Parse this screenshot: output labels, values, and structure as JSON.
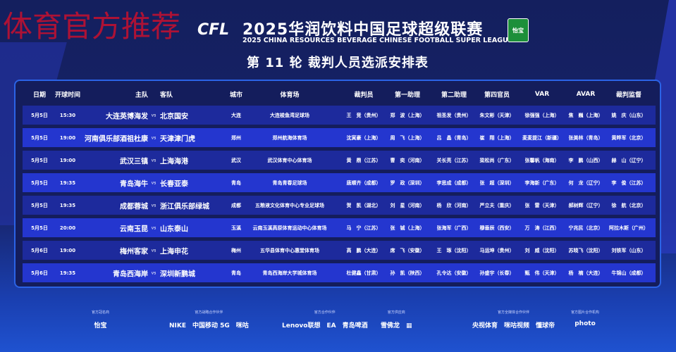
{
  "watermark": "体育官方推荐",
  "header": {
    "logo": "CFL",
    "title_cn": "2025华润饮料中国足球超级联赛",
    "title_en": "2025 CHINA RESOURCES BEVERAGE CHINESE FOOTBALL SUPER LEAGUE",
    "sponsor_badge": "怡宝",
    "round_title": "第 11 轮 裁判人员选派安排表"
  },
  "columns": {
    "date": "日期",
    "time": "开球时间",
    "home": "主队",
    "away": "客队",
    "city": "城市",
    "venue": "体育场",
    "referee": "裁判员",
    "a1": "第一助理",
    "a2": "第二助理",
    "fourth": "第四官员",
    "var": "VAR",
    "avar": "AVAR",
    "supervisor": "裁判监督"
  },
  "vs": "vs",
  "matches": [
    {
      "date": "5月5日",
      "time": "15:30",
      "home": "大连英博海发",
      "away": "北京国安",
      "city": "大连",
      "venue": "大连梭鱼湾足球场",
      "referee": "王　竞（贵州）",
      "a1": "郑　波（上海）",
      "a2": "祖圣发（贵州）",
      "fourth": "朱文彬（天津）",
      "var": "徐强强（上海）",
      "avar": "焦　巍（上海）",
      "supervisor": "姚　庆（山东）"
    },
    {
      "date": "5月5日",
      "time": "19:00",
      "home": "河南俱乐部酒祖杜康",
      "away": "天津津门虎",
      "city": "郑州",
      "venue": "郑州航海体育场",
      "referee": "沈寅豪（上海）",
      "a1": "周　飞（上海）",
      "a2": "吕　晶（青岛）",
      "fourth": "崔　翔（上海）",
      "var": "麦麦提江（新疆）",
      "avar": "张美林（青岛）",
      "supervisor": "黄晔军（北京）"
    },
    {
      "date": "5月5日",
      "time": "19:00",
      "home": "武汉三镇",
      "away": "上海海港",
      "city": "武汉",
      "venue": "武汉体育中心体育场",
      "referee": "黄　鼎（江苏）",
      "a1": "曹　奕（河南）",
      "a2": "关长亮（江苏）",
      "fourth": "梁松尚（广东）",
      "var": "张馨帆（海南）",
      "avar": "李　鹏（山西）",
      "supervisor": "赫　山（辽宁）"
    },
    {
      "date": "5月5日",
      "time": "19:35",
      "home": "青岛海牛",
      "away": "长春亚泰",
      "city": "青岛",
      "venue": "青岛青春足球场",
      "referee": "唐顺齐（成都）",
      "a1": "罗　政（深圳）",
      "a2": "李思成（成都）",
      "fourth": "张　超（深圳）",
      "var": "李海新（广东）",
      "avar": "何　龙（辽宁）",
      "supervisor": "李　俊（江苏）"
    },
    {
      "date": "5月5日",
      "time": "19:35",
      "home": "成都蓉城",
      "away": "浙江俱乐部绿城",
      "city": "成都",
      "venue": "五粮液文化体育中心专业足球场",
      "referee": "贺　凯（湖北）",
      "a1": "刘　星（河南）",
      "a2": "杨　欣（河南）",
      "fourth": "严立夫（重庆）",
      "var": "张　雷（天津）",
      "avar": "郝树辉（辽宁）",
      "supervisor": "徐　航（北京）"
    },
    {
      "date": "5月5日",
      "time": "20:00",
      "home": "云南玉昆",
      "away": "山东泰山",
      "city": "玉溪",
      "venue": "云南玉溪高原体育运动中心体育场",
      "referee": "马　宁（江苏）",
      "a1": "张　铖（上海）",
      "a2": "张海军（广西）",
      "fourth": "穆垂辰（西安）",
      "var": "万　涛（江西）",
      "avar": "宁兆民（北京）",
      "supervisor": "阿拉木斯（广州）"
    },
    {
      "date": "5月6日",
      "time": "19:00",
      "home": "梅州客家",
      "away": "上海申花",
      "city": "梅州",
      "venue": "五华县体育中心惠堂体育场",
      "referee": "高　鹏（大连）",
      "a1": "席　飞（安徽）",
      "a2": "王　琢（沈阳）",
      "fourth": "马运坤（贵州）",
      "var": "刘　威（沈阳）",
      "avar": "苏晓飞（沈阳）",
      "supervisor": "刘铁军（山东）"
    },
    {
      "date": "5月6日",
      "time": "19:35",
      "home": "青岛西海岸",
      "away": "深圳新鹏城",
      "city": "青岛",
      "venue": "青岛西海岸大学城体育场",
      "referee": "杜健鑫（甘肃）",
      "a1": "孙　凯（陕西）",
      "a2": "孔令达（安徽）",
      "fourth": "孙盛宇（长春）",
      "var": "甄　伟（天津）",
      "avar": "杨　楠（大连）",
      "supervisor": "牛锦山（成都）"
    }
  ],
  "sponsors": [
    {
      "label": "官方冠名商",
      "logos": "怡宝"
    },
    {
      "label": "官方战略合作伙伴",
      "logos": "NIKE　中国移动 5G　咪咕"
    },
    {
      "label": "官方合作伙伴",
      "logos": "Lenovo联想　EA　青岛啤酒"
    },
    {
      "label": "官方供应商",
      "logos": "雪佛龙　▦"
    },
    {
      "label": "官方全媒体合作伙伴",
      "logos": "央视体育　咪咕视频　懂球帝"
    },
    {
      "label": "官方图片合作机构",
      "logos": "photo"
    }
  ],
  "colors": {
    "row_dark": "#1d2a9c",
    "row_light": "#2436cf",
    "panel_border": "#2b63e6",
    "watermark": "#c8102e"
  }
}
